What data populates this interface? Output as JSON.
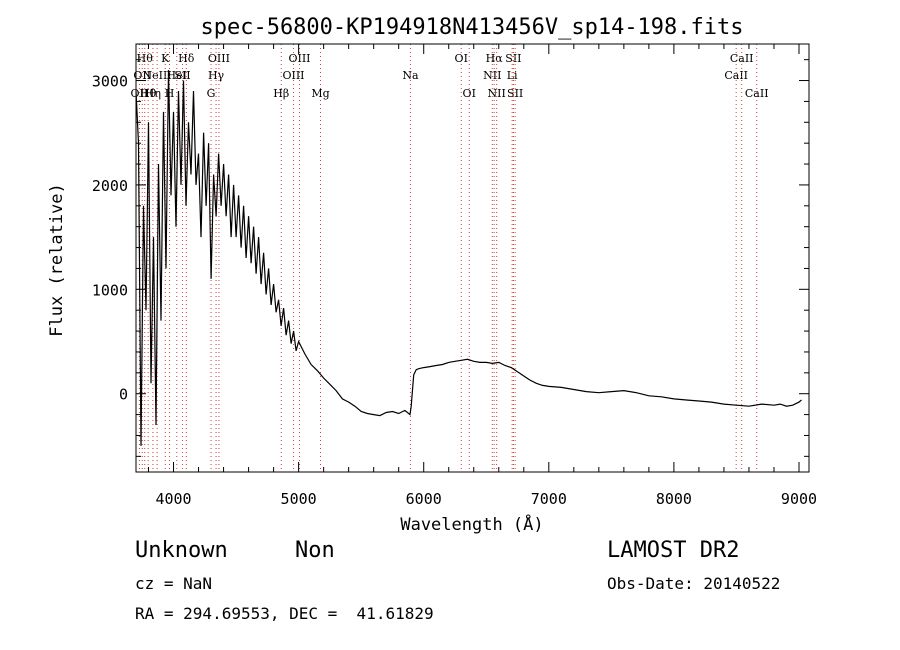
{
  "chart_data": {
    "type": "line",
    "title": "spec-56800-KP194918N413456V_sp14-198.fits",
    "xlabel": "Wavelength (Å)",
    "ylabel": "Flux (relative)",
    "xlim": [
      3700,
      9080
    ],
    "ylim": [
      -750,
      3350
    ],
    "xticks": [
      4000,
      5000,
      6000,
      7000,
      8000,
      9000
    ],
    "yticks": [
      0,
      1000,
      2000,
      3000
    ],
    "grid": false,
    "series": [
      {
        "x": [
          3700,
          3720,
          3740,
          3760,
          3780,
          3800,
          3820,
          3840,
          3860,
          3880,
          3900,
          3920,
          3940,
          3960,
          3980,
          4000,
          4020,
          4040,
          4060,
          4080,
          4100,
          4120,
          4140,
          4160,
          4180,
          4200,
          4220,
          4240,
          4260,
          4280,
          4300,
          4320,
          4340,
          4360,
          4380,
          4400,
          4420,
          4440,
          4460,
          4480,
          4500,
          4520,
          4540,
          4560,
          4580,
          4600,
          4620,
          4640,
          4660,
          4680,
          4700,
          4720,
          4740,
          4760,
          4780,
          4800,
          4820,
          4840,
          4860,
          4880,
          4900,
          4920,
          4940,
          4960,
          4980,
          5000,
          5050,
          5100,
          5150,
          5200,
          5250,
          5300,
          5350,
          5400,
          5450,
          5500,
          5550,
          5600,
          5650,
          5700,
          5750,
          5800,
          5850,
          5890,
          5900,
          5920,
          5940,
          5960,
          6000,
          6050,
          6100,
          6150,
          6200,
          6250,
          6300,
          6350,
          6400,
          6450,
          6500,
          6550,
          6600,
          6650,
          6700,
          6750,
          6800,
          6850,
          6900,
          6950,
          7000,
          7100,
          7200,
          7300,
          7400,
          7500,
          7600,
          7700,
          7800,
          7900,
          8000,
          8100,
          8200,
          8300,
          8400,
          8500,
          8600,
          8700,
          8800,
          8850,
          8900,
          8950,
          9000,
          9020
        ],
        "y": [
          2900,
          2400,
          -500,
          1800,
          800,
          2600,
          100,
          1500,
          -300,
          2200,
          700,
          2700,
          1200,
          3100,
          1900,
          2700,
          1600,
          2900,
          2000,
          3000,
          1800,
          2600,
          2100,
          2900,
          2000,
          2300,
          1500,
          2500,
          1800,
          2400,
          1100,
          2100,
          1700,
          2300,
          1800,
          2200,
          1700,
          2100,
          1500,
          2000,
          1500,
          1900,
          1400,
          1800,
          1300,
          1700,
          1250,
          1600,
          1150,
          1500,
          1050,
          1350,
          950,
          1200,
          850,
          1050,
          780,
          900,
          650,
          820,
          560,
          700,
          480,
          600,
          410,
          500,
          380,
          280,
          220,
          150,
          90,
          30,
          -50,
          -80,
          -120,
          -170,
          -190,
          -200,
          -210,
          -180,
          -170,
          -190,
          -160,
          -200,
          -120,
          180,
          230,
          240,
          250,
          260,
          270,
          280,
          300,
          310,
          320,
          330,
          310,
          300,
          300,
          290,
          300,
          270,
          250,
          210,
          170,
          130,
          100,
          80,
          70,
          60,
          40,
          20,
          10,
          20,
          30,
          10,
          -20,
          -30,
          -50,
          -60,
          -70,
          -80,
          -100,
          -110,
          -120,
          -100,
          -110,
          -100,
          -120,
          -110,
          -80,
          -60
        ]
      }
    ],
    "lines": [
      {
        "x": 3727,
        "label": "OII",
        "row": 3
      },
      {
        "x": 3750,
        "label": "OII",
        "row": 2
      },
      {
        "x": 3770,
        "label": "Hθ",
        "row": 1
      },
      {
        "x": 3797,
        "label": "Hθ",
        "row": 3
      },
      {
        "x": 3835,
        "label": "Hη",
        "row": 3
      },
      {
        "x": 3869,
        "label": "NeIII",
        "row": 2
      },
      {
        "x": 3934,
        "label": "K",
        "row": 1
      },
      {
        "x": 3968,
        "label": "H",
        "row": 3
      },
      {
        "x": 4026,
        "label": "HeI",
        "row": 2
      },
      {
        "x": 4072,
        "label": "SII",
        "row": 2
      },
      {
        "x": 4102,
        "label": "Hδ",
        "row": 1
      },
      {
        "x": 4300,
        "label": "G",
        "row": 3
      },
      {
        "x": 4340,
        "label": "Hγ",
        "row": 2
      },
      {
        "x": 4363,
        "label": "OIII",
        "row": 1
      },
      {
        "x": 4861,
        "label": "Hβ",
        "row": 3
      },
      {
        "x": 4959,
        "label": "OIII",
        "row": 2
      },
      {
        "x": 5007,
        "label": "OIII",
        "row": 1
      },
      {
        "x": 5175,
        "label": "Mg",
        "row": 3
      },
      {
        "x": 5894,
        "label": "Na",
        "row": 2
      },
      {
        "x": 6300,
        "label": "OI",
        "row": 1
      },
      {
        "x": 6364,
        "label": "OI",
        "row": 3
      },
      {
        "x": 6548,
        "label": "NII",
        "row": 2
      },
      {
        "x": 6563,
        "label": "Hα",
        "row": 1
      },
      {
        "x": 6583,
        "label": "NII",
        "row": 3
      },
      {
        "x": 6707,
        "label": "Li",
        "row": 2
      },
      {
        "x": 6717,
        "label": "SII",
        "row": 1
      },
      {
        "x": 6731,
        "label": "SII",
        "row": 3
      },
      {
        "x": 8498,
        "label": "CaII",
        "row": 2
      },
      {
        "x": 8542,
        "label": "CaII",
        "row": 1
      },
      {
        "x": 8662,
        "label": "CaII",
        "row": 3
      }
    ]
  },
  "info": {
    "classification": "Unknown",
    "subclass": "Non",
    "survey": "LAMOST DR2",
    "cz": "cz = NaN",
    "obs_date": "Obs-Date: 20140522",
    "coords": "RA = 294.69553, DEC =  41.61829"
  }
}
